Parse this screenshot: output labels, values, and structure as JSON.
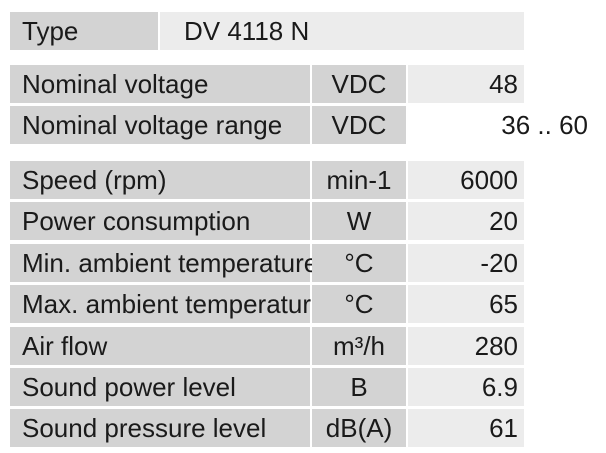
{
  "table": {
    "type": {
      "label": "Type",
      "value": "DV 4118 N"
    },
    "rows": [
      {
        "label": "Nominal voltage",
        "unit": "VDC",
        "value": "48"
      },
      {
        "label": "Nominal voltage range",
        "unit": "VDC",
        "value": "36 .. 60"
      },
      {
        "label": "Speed (rpm)",
        "unit": "min-1",
        "value": "6000"
      },
      {
        "label": "Power consumption",
        "unit": "W",
        "value": "20"
      },
      {
        "label": "Min. ambient temperature",
        "unit": "°C",
        "value": "-20"
      },
      {
        "label": "Max. ambient temperature",
        "unit": "°C",
        "value": "65"
      },
      {
        "label": "Air flow",
        "unit": "m³/h",
        "value": "280"
      },
      {
        "label": "Sound power level",
        "unit": "B",
        "value": "6.9"
      },
      {
        "label": "Sound pressure level",
        "unit": "dB(A)",
        "value": "61"
      }
    ]
  }
}
